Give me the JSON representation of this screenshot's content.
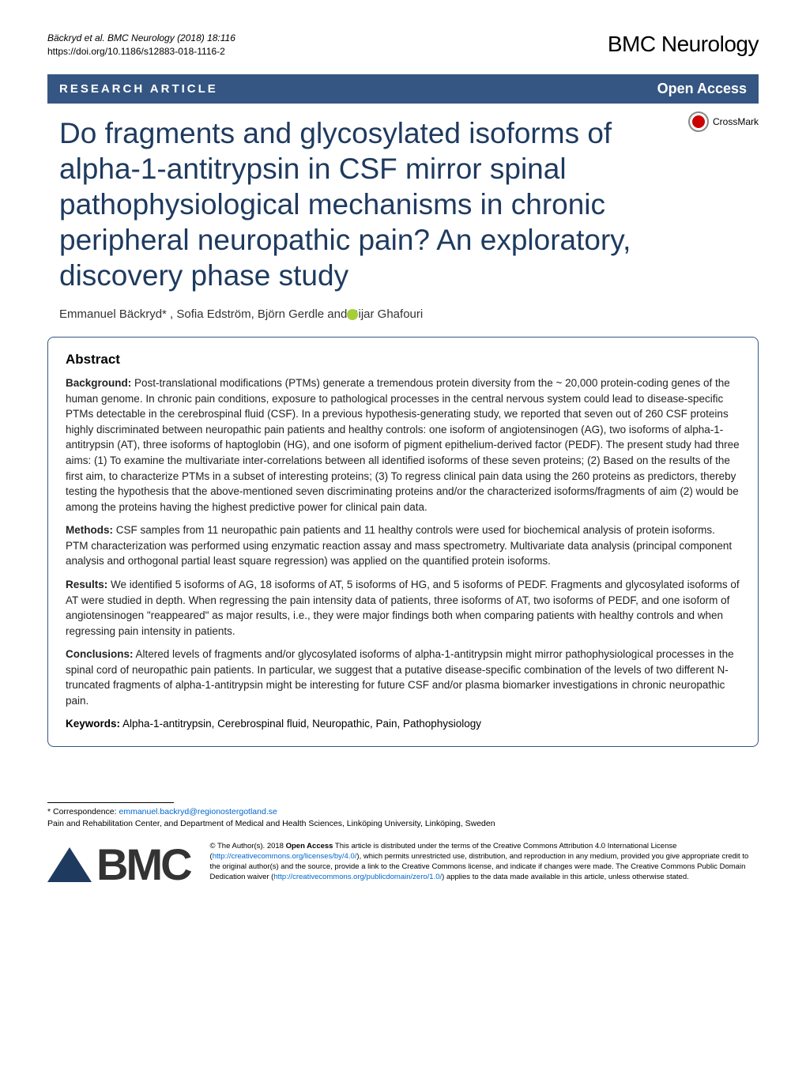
{
  "header": {
    "running_head_line1": "Bäckryd et al. BMC Neurology  (2018) 18:116",
    "running_head_line2": "https://doi.org/10.1186/s12883-018-1116-2",
    "journal_brand": "BMC Neurology"
  },
  "labels": {
    "article_type": "RESEARCH ARTICLE",
    "open_access": "Open Access",
    "crossmark": "CrossMark"
  },
  "title": "Do fragments and glycosylated isoforms of alpha-1-antitrypsin in CSF mirror spinal pathophysiological mechanisms in chronic peripheral neuropathic pain? An exploratory, discovery phase study",
  "authors": "Emmanuel Bäckryd*    , Sofia Edström, Björn Gerdle and Bijar Ghafouri",
  "abstract": {
    "heading": "Abstract",
    "background_label": "Background:",
    "background_text": " Post-translational modifications (PTMs) generate a tremendous protein diversity from the ~ 20,000 protein-coding genes of the human genome. In chronic pain conditions, exposure to pathological processes in the central nervous system could lead to disease-specific PTMs detectable in the cerebrospinal fluid (CSF). In a previous hypothesis-generating study, we reported that seven out of 260 CSF proteins highly discriminated between neuropathic pain patients and healthy controls: one isoform of angiotensinogen (AG), two isoforms of alpha-1-antitrypsin (AT), three isoforms of haptoglobin (HG), and one isoform of pigment epithelium-derived factor (PEDF). The present study had three aims: (1) To examine the multivariate inter-correlations between all identified isoforms of these seven proteins; (2) Based on the results of the first aim, to characterize PTMs in a subset of interesting proteins; (3) To regress clinical pain data using the 260 proteins as predictors, thereby testing the hypothesis that the above-mentioned seven discriminating proteins and/or the characterized isoforms/fragments of aim (2) would be among the proteins having the highest predictive power for clinical pain data.",
    "methods_label": "Methods:",
    "methods_text": " CSF samples from 11 neuropathic pain patients and 11 healthy controls were used for biochemical analysis of protein isoforms. PTM characterization was performed using enzymatic reaction assay and mass spectrometry. Multivariate data analysis (principal component analysis and orthogonal partial least square regression) was applied on the quantified protein isoforms.",
    "results_label": "Results:",
    "results_text": " We identified 5 isoforms of AG, 18 isoforms of AT, 5 isoforms of HG, and 5 isoforms of PEDF. Fragments and glycosylated isoforms of AT were studied in depth. When regressing the pain intensity data of patients, three isoforms of AT, two isoforms of PEDF, and one isoform of angiotensinogen \"reappeared\" as major results, i.e., they were major findings both when comparing patients with healthy controls and when regressing pain intensity in patients.",
    "conclusions_label": "Conclusions:",
    "conclusions_text": " Altered levels of fragments and/or glycosylated isoforms of alpha-1-antitrypsin might mirror pathophysiological processes in the spinal cord of neuropathic pain patients. In particular, we suggest that a putative disease-specific combination of the levels of two different N-truncated fragments of alpha-1-antitrypsin might be interesting for future CSF and/or plasma biomarker investigations in chronic neuropathic pain.",
    "keywords_label": "Keywords:",
    "keywords_text": " Alpha-1-antitrypsin, Cerebrospinal fluid, Neuropathic, Pain, Pathophysiology"
  },
  "footer": {
    "correspondence_label": "* Correspondence: ",
    "correspondence_email": "emmanuel.backryd@regionostergotland.se",
    "affiliation": "Pain and Rehabilitation Center, and Department of Medical and Health Sciences, Linköping University, Linköping, Sweden",
    "bmc_logo_text": "BMC",
    "license_pre": "© The Author(s). 2018 ",
    "license_oa": "Open Access",
    "license_mid1": " This article is distributed under the terms of the Creative Commons Attribution 4.0 International License (",
    "license_link1": "http://creativecommons.org/licenses/by/4.0/",
    "license_mid2": "), which permits unrestricted use, distribution, and reproduction in any medium, provided you give appropriate credit to the original author(s) and the source, provide a link to the Creative Commons license, and indicate if changes were made. The Creative Commons Public Domain Dedication waiver (",
    "license_link2": "http://creativecommons.org/publicdomain/zero/1.0/",
    "license_mid3": ") applies to the data made available in this article, unless otherwise stated."
  },
  "colors": {
    "brand_blue": "#355682",
    "title_color": "#1e3a5f",
    "link_color": "#0066cc",
    "orcid_green": "#a6ce39"
  }
}
